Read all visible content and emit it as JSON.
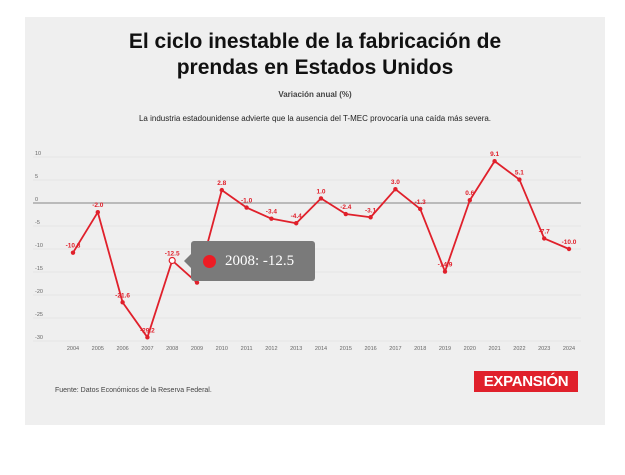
{
  "title": "El ciclo inestable de la fabricación de prendas en Estados Unidos",
  "title_line1": "El ciclo inestable de la fabricación de",
  "title_line2": "prendas en Estados Unidos",
  "subtitle": "Variación anual (%)",
  "description": "La industria estadounidense advierte que la ausencia del T-MEC provocaría una caída más severa.",
  "source": "Fuente: Datos Económicos de la Reserva Federal.",
  "logo": "EXPANSIÓN",
  "colors": {
    "line": "#e0202b",
    "background": "#efefef",
    "tooltip": "#7a7a7a"
  },
  "tooltip": {
    "text": "2008: -12.5",
    "year": "2008",
    "value": -12.5
  },
  "chart_data": {
    "type": "line",
    "title": "El ciclo inestable de la fabricación de prendas en Estados Unidos",
    "subtitle": "Variación anual (%)",
    "xlabel": "",
    "ylabel": "",
    "categories": [
      "2004",
      "2005",
      "2006",
      "2007",
      "2008",
      "2009",
      "2010",
      "2011",
      "2012",
      "2013",
      "2014",
      "2015",
      "2016",
      "2017",
      "2018",
      "2019",
      "2020",
      "2021",
      "2022",
      "2023",
      "2024"
    ],
    "series": [
      {
        "name": "Variación anual (%)",
        "values": [
          -10.8,
          -2.0,
          -21.6,
          -29.2,
          -12.5,
          -17.3,
          2.8,
          -1.0,
          -3.4,
          -4.4,
          1.0,
          -2.4,
          -3.1,
          3.0,
          -1.3,
          -14.9,
          0.6,
          9.1,
          5.1,
          -7.7,
          -10.0
        ],
        "labels": [
          "-10.8",
          "-2.0",
          "-21.6",
          "-29.2",
          "-12.5",
          "",
          "2.8",
          "-1.0",
          "-3.4",
          "-4.4",
          "1.0",
          "-2.4",
          "-3.1",
          "3.0",
          "-1.3",
          "-14.9",
          "0.6",
          "9.1",
          "5.1",
          "-7.7",
          "-10.0"
        ]
      }
    ],
    "yticks": [
      10,
      5,
      0,
      -5,
      -10,
      -15,
      -20,
      -25,
      -30
    ],
    "ylim": [
      -30,
      10
    ],
    "grid": true,
    "highlighted_point": "2008",
    "legend": "none"
  }
}
